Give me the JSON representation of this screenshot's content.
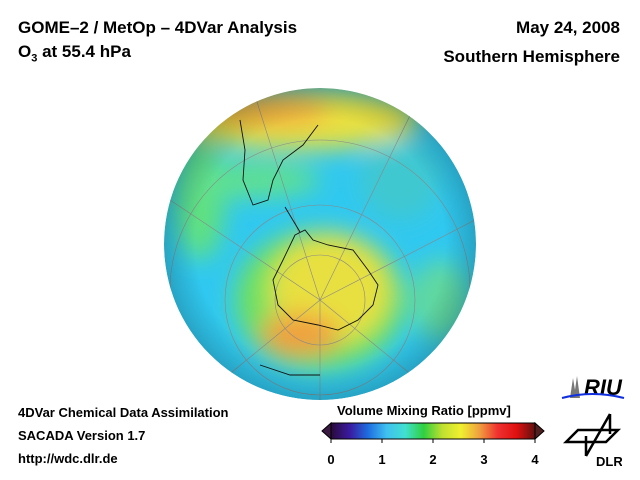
{
  "header": {
    "title": "GOME–2 / MetOp – 4DVar Analysis",
    "species_prefix": "O",
    "species_sub": "3",
    "species_suffix": " at 55.4 hPa",
    "date": "May 24, 2008",
    "region": "Southern Hemisphere"
  },
  "footer": {
    "line1": "4DVar Chemical Data Assimilation",
    "line2": "SACADA Version 1.7",
    "line3": "http://wdc.dlr.de"
  },
  "colorbar": {
    "title": "Volume Mixing Ratio [ppmv]",
    "ticks": [
      "0",
      "1",
      "2",
      "3",
      "4"
    ],
    "range": [
      0,
      4
    ],
    "colors": [
      "#2a0a3a",
      "#3a1aa0",
      "#1e6ee0",
      "#40c0f0",
      "#40e0d0",
      "#30d040",
      "#c0e030",
      "#f0f030",
      "#f0a040",
      "#f03030",
      "#e01010",
      "#601010"
    ]
  },
  "logos": {
    "riu": "RIU",
    "dlr": "DLR"
  }
}
